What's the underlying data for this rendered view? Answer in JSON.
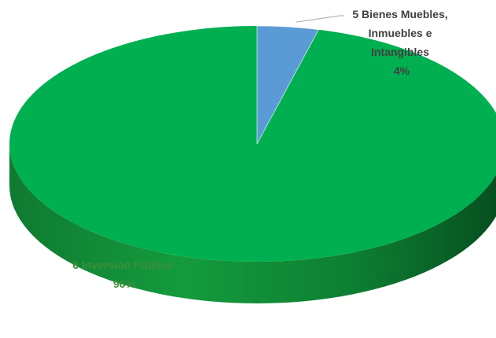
{
  "chart_data": {
    "type": "pie",
    "style": "3d",
    "slices": [
      {
        "name": "5 Bienes Muebles, Inmuebles e Intangibles",
        "label_lines": [
          "5 Bienes Muebles,",
          "Inmuebles e",
          "Intangibles"
        ],
        "percent_label": "4%",
        "value": 4,
        "color": "#5b9bd5",
        "label_color": "#404040"
      },
      {
        "name": "6 Inversión Pública",
        "label_lines": [
          "6 Inversión Pública"
        ],
        "percent_label": "96%",
        "value": 96,
        "color": "#00b050",
        "label_color": "#3c8f3c"
      }
    ]
  }
}
